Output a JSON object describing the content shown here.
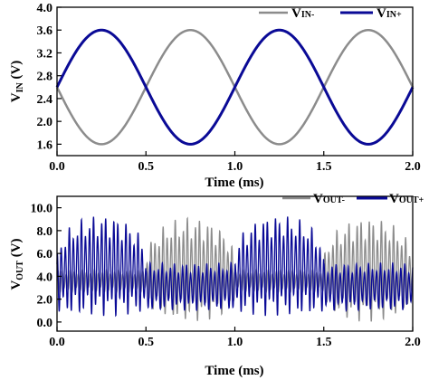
{
  "chart_data": [
    {
      "type": "line",
      "xlabel": "Time (ms)",
      "ylabel": {
        "main": "V",
        "sub": "IN",
        "unit": " (V)"
      },
      "xlim": [
        0.0,
        2.0
      ],
      "ylim": [
        1.4,
        4.0
      ],
      "xticks": [
        "0.0",
        "0.5",
        "1.0",
        "1.5",
        "2.0"
      ],
      "xtick_values": [
        0.0,
        0.5,
        1.0,
        1.5,
        2.0
      ],
      "yticks": [
        "1.6",
        "2.0",
        "2.4",
        "2.8",
        "3.2",
        "3.6",
        "4.0"
      ],
      "ytick_values": [
        1.6,
        2.0,
        2.4,
        2.8,
        3.2,
        3.6,
        4.0
      ],
      "series": [
        {
          "name": "VIN-",
          "label_main": "V",
          "label_sub": "IN-",
          "color": "#8c8c8c",
          "model": {
            "offset": 2.6,
            "amplitude": -1.0,
            "frequency_khz": 1.0
          }
        },
        {
          "name": "VIN+",
          "label_main": "V",
          "label_sub": "IN+",
          "color": "#0a0a96",
          "model": {
            "offset": 2.6,
            "amplitude": 1.0,
            "frequency_khz": 1.0
          }
        }
      ]
    },
    {
      "type": "line",
      "xlabel": "Time (ms)",
      "ylabel": {
        "main": "V",
        "sub": "OUT",
        "unit": " (V)"
      },
      "xlim": [
        0.0,
        2.0
      ],
      "ylim": [
        -0.8,
        11.0
      ],
      "xticks": [
        "0.0",
        "0.5",
        "1.0",
        "1.5",
        "2.0"
      ],
      "xtick_values": [
        0.0,
        0.5,
        1.0,
        1.5,
        2.0
      ],
      "yticks": [
        "0.0",
        "2.0",
        "4.0",
        "6.0",
        "8.0",
        "10.0"
      ],
      "ytick_values": [
        0.0,
        2.0,
        4.0,
        6.0,
        8.0,
        10.0
      ],
      "series": [
        {
          "name": "VOUT-",
          "label_main": "V",
          "label_sub": "OUT-",
          "color": "#8c8c8c",
          "envelope": {
            "active_high": [
              3.5,
              9.2
            ],
            "active_low": [
              0.0,
              3.2
            ],
            "idle": [
              2.6,
              4.6
            ]
          }
        },
        {
          "name": "VOUT+",
          "label_main": "V",
          "label_sub": "OUT+",
          "color": "#0a0a96",
          "envelope": {
            "active_high": [
              4.0,
              9.4
            ],
            "active_low": [
              0.5,
              4.0
            ],
            "idle": [
              1.0,
              5.2
            ]
          }
        }
      ]
    }
  ]
}
